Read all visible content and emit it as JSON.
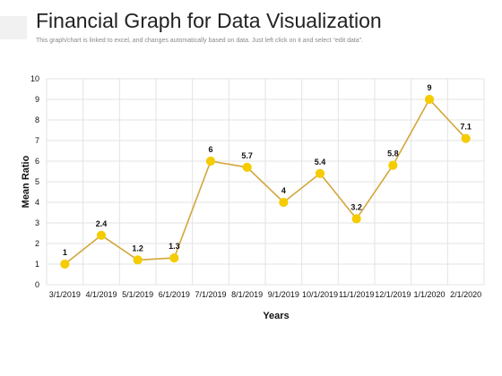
{
  "header": {
    "title": "Financial Graph for Data Visualization",
    "subtitle": "This graph/chart is linked to excel, and changes automatically based on data. Just left click on it and select “edit data”."
  },
  "colors": {
    "line": "#d4a63a",
    "marker": "#f5cc00",
    "grid": "#e3e3e3",
    "accent_bar": "#f1f1f1"
  },
  "chart_data": {
    "type": "line",
    "categories": [
      "3/1/2019",
      "4/1/2019",
      "5/1/2019",
      "6/1/2019",
      "7/1/2019",
      "8/1/2019",
      "9/1/2019",
      "10/1/2019",
      "11/1/2019",
      "12/1/2019",
      "1/1/2020",
      "2/1/2020"
    ],
    "series": [
      {
        "values": [
          1,
          2.4,
          1.2,
          1.3,
          6,
          5.7,
          4,
          5.4,
          3.2,
          5.8,
          9,
          7.1
        ]
      }
    ],
    "data_labels": [
      "1",
      "2.4",
      "1.2",
      "1.3",
      "6",
      "5.7",
      "4",
      "5.4",
      "3.2",
      "5.8",
      "9",
      "7.1"
    ],
    "xlabel": "Years",
    "ylabel": "Mean Ratio",
    "ylim": [
      0,
      10
    ],
    "yticks": [
      0,
      1,
      2,
      3,
      4,
      5,
      6,
      7,
      8,
      9,
      10
    ],
    "grid": true,
    "legend": false
  }
}
